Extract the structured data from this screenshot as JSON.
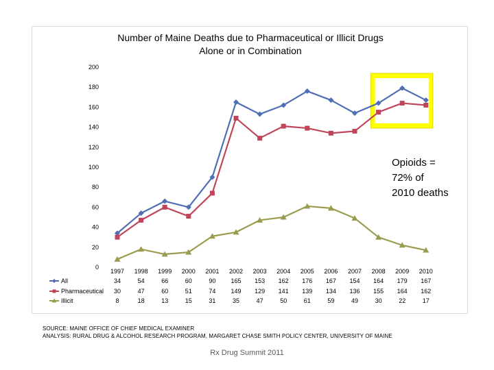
{
  "chart_data": {
    "type": "line",
    "title_lines": [
      "Number of Maine Deaths due to Pharmaceutical or Illicit Drugs",
      "Alone or in Combination"
    ],
    "categories": [
      "1997",
      "1998",
      "1999",
      "2000",
      "2001",
      "2002",
      "2003",
      "2004",
      "2005",
      "2006",
      "2007",
      "2008",
      "2009",
      "2010"
    ],
    "series": [
      {
        "name": "All",
        "color": "#4f6eb4",
        "marker": "diamond",
        "values": [
          34,
          54,
          66,
          60,
          90,
          165,
          153,
          162,
          176,
          167,
          154,
          164,
          179,
          167
        ],
        "labels": [
          "34",
          "54",
          "66",
          "60",
          "90",
          "165",
          "153",
          "162",
          "176",
          "167",
          "154",
          "164",
          "179",
          "167"
        ]
      },
      {
        "name": "Pharmaceutical",
        "color": "#c0455a",
        "marker": "square",
        "values": [
          30,
          47,
          60,
          51,
          74,
          149,
          129,
          141,
          139,
          134,
          136,
          155,
          164,
          162
        ],
        "labels": [
          "30",
          "47",
          "60",
          "51",
          "74",
          "149",
          "129",
          "141",
          "139",
          "134",
          "136",
          "155",
          "164",
          "162"
        ]
      },
      {
        "name": "Illicit",
        "color": "#9b9b4f",
        "marker": "triangle",
        "values": [
          8,
          18,
          13,
          15,
          31,
          35,
          47,
          50,
          61,
          59,
          49,
          30,
          22,
          17
        ],
        "labels": [
          "8",
          "18",
          "13",
          "15",
          "31",
          "35",
          "47",
          "50",
          "61",
          "59",
          "49",
          "30",
          "22",
          "17"
        ]
      }
    ],
    "yticks": [
      "0",
      "20",
      "40",
      "60",
      "80",
      "100",
      "120",
      "140",
      "160",
      "180",
      "200"
    ],
    "ylim": [
      0,
      200
    ],
    "grid": false,
    "legend": "data-table-left",
    "annotation": {
      "lines": [
        "Opioids =",
        "72% of",
        "2010 deaths"
      ]
    },
    "highlight": {
      "from": "2008",
      "to": "2010",
      "color": "#ffff00",
      "border": "#e0d800"
    }
  },
  "source_lines": [
    "SOURCE: MAINE OFFICE OF CHIEF MEDICAL EXAMINER",
    "ANALYSIS: RURAL DRUG & ALCOHOL RESEARCH PROGRAM, MARGARET CHASE SMITH POLICY CENTER, UNIVERSITY OF MAINE"
  ],
  "footer": "Rx Drug Summit 2011"
}
